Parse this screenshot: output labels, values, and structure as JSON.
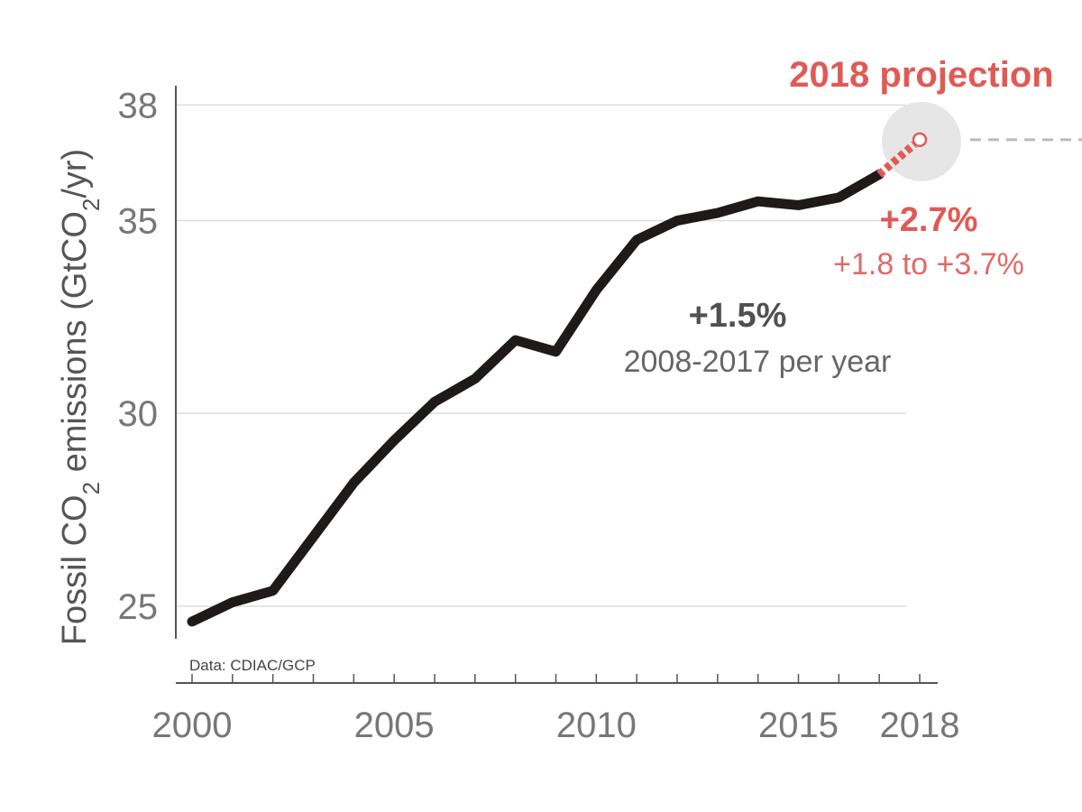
{
  "chart_data": {
    "type": "line",
    "ylabel_parts": [
      "Fossil CO",
      "2",
      " emissions (GtCO",
      "2",
      "/yr)"
    ],
    "xlabel": "",
    "xlim": [
      2000,
      2018
    ],
    "ylim": [
      24.2,
      38.5
    ],
    "yticks": [
      25,
      30,
      35,
      38
    ],
    "xticks_major": [
      2000,
      2005,
      2010,
      2015,
      2018
    ],
    "grid": "horizontal",
    "series": [
      {
        "x": [
          2000,
          2001,
          2002,
          2003,
          2004,
          2005,
          2006,
          2007,
          2008,
          2009,
          2010,
          2011,
          2012,
          2013,
          2014,
          2015,
          2016,
          2017
        ],
        "values": [
          24.6,
          25.1,
          25.4,
          26.8,
          28.2,
          29.3,
          30.3,
          30.9,
          31.9,
          31.6,
          33.2,
          34.5,
          35.0,
          35.2,
          35.5,
          35.4,
          35.6,
          36.2
        ]
      }
    ],
    "projection": {
      "x": [
        2017,
        2018
      ],
      "values": [
        36.2,
        37.1
      ]
    },
    "annotations": {
      "trend_pct": "+1.5%",
      "trend_desc": "2008-2017 per year",
      "projection_title": "2018 projection",
      "projection_pct": "+2.7%",
      "projection_range": "+1.8 to +3.7%"
    },
    "source": "Data: CDIAC/GCP"
  },
  "colors": {
    "line": "#1e1a1a",
    "projection": "#e05a55",
    "grid": "#dddddd",
    "axis": "#555555",
    "highlight_circle": "#e6e6e6",
    "dashed_leader": "#bbbbbb"
  }
}
